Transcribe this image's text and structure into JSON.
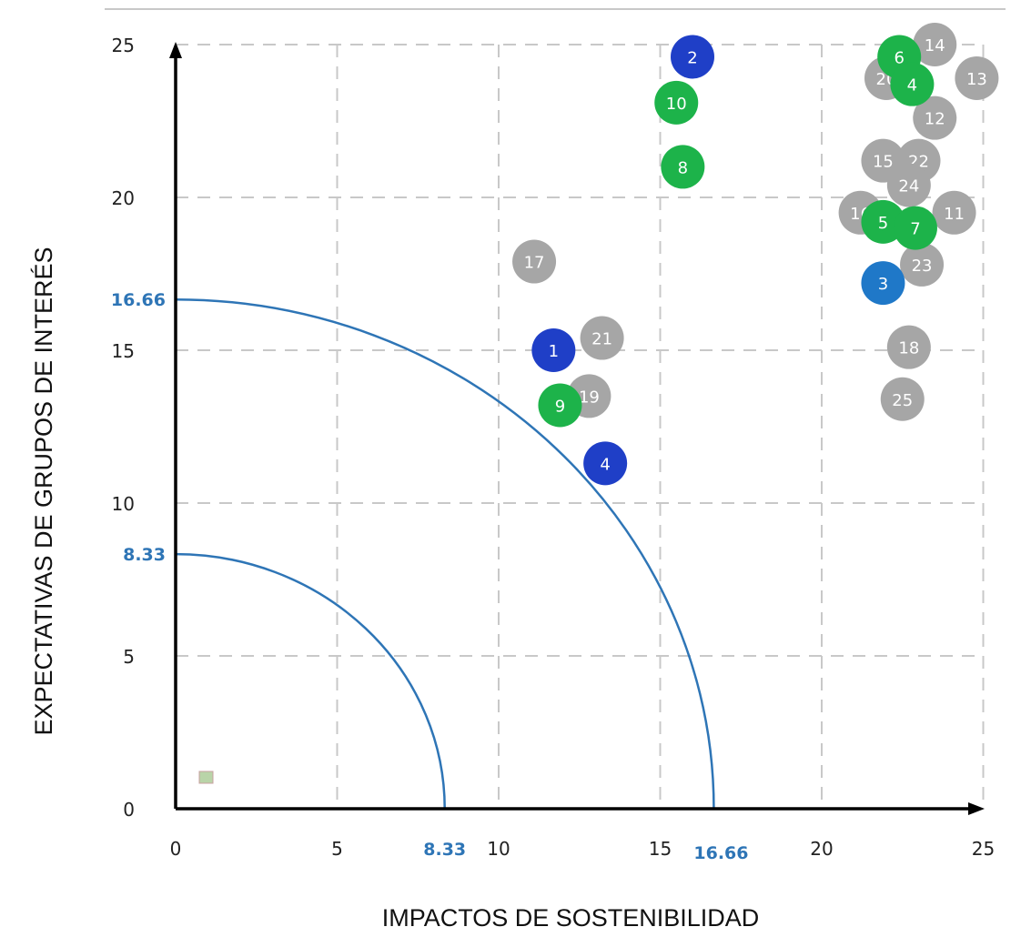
{
  "chart_data": {
    "type": "scatter",
    "xlabel": "IMPACTOS DE SOSTENIBILIDAD",
    "ylabel": "EXPECTATIVAS DE GRUPOS DE INTERÉS",
    "xlim": [
      0,
      25
    ],
    "ylim": [
      0,
      25
    ],
    "x_ticks": [
      "0",
      "5",
      "10",
      "15",
      "20",
      "25"
    ],
    "y_ticks": [
      "0",
      "5",
      "10",
      "15",
      "20",
      "25"
    ],
    "grid": true,
    "threshold_arcs": [
      {
        "radius": 8.33,
        "x_label": "8.33",
        "y_label": "8.33"
      },
      {
        "radius": 16.66,
        "x_label": "16.66",
        "y_label": "16.66"
      }
    ],
    "colors": {
      "navy": "#1f3fc7",
      "blue": "#1f78c8",
      "green": "#1db34a",
      "gray": "#a6a6a6",
      "arc": "#2e75b6",
      "grid": "#c8c8c8",
      "axis": "#000000"
    },
    "points": [
      {
        "label": "14",
        "x": 23.5,
        "y": 25.0,
        "color": "gray"
      },
      {
        "label": "13",
        "x": 24.8,
        "y": 23.9,
        "color": "gray"
      },
      {
        "label": "20",
        "x": 22.0,
        "y": 23.9,
        "color": "gray"
      },
      {
        "label": "12",
        "x": 23.5,
        "y": 22.6,
        "color": "gray"
      },
      {
        "label": "15",
        "x": 21.9,
        "y": 21.2,
        "color": "gray"
      },
      {
        "label": "22",
        "x": 23.0,
        "y": 21.2,
        "color": "gray"
      },
      {
        "label": "24",
        "x": 22.7,
        "y": 20.4,
        "color": "gray"
      },
      {
        "label": "16",
        "x": 21.2,
        "y": 19.5,
        "color": "gray"
      },
      {
        "label": "11",
        "x": 24.1,
        "y": 19.5,
        "color": "gray"
      },
      {
        "label": "23",
        "x": 23.1,
        "y": 17.8,
        "color": "gray"
      },
      {
        "label": "17",
        "x": 11.1,
        "y": 17.9,
        "color": "gray"
      },
      {
        "label": "21",
        "x": 13.2,
        "y": 15.4,
        "color": "gray"
      },
      {
        "label": "19",
        "x": 12.8,
        "y": 13.5,
        "color": "gray"
      },
      {
        "label": "18",
        "x": 22.7,
        "y": 15.1,
        "color": "gray"
      },
      {
        "label": "25",
        "x": 22.5,
        "y": 13.4,
        "color": "gray"
      },
      {
        "label": "6",
        "x": 22.4,
        "y": 24.6,
        "color": "green"
      },
      {
        "label": "4",
        "x": 22.8,
        "y": 23.7,
        "color": "green"
      },
      {
        "label": "10",
        "x": 15.5,
        "y": 23.1,
        "color": "green"
      },
      {
        "label": "8",
        "x": 15.7,
        "y": 21.0,
        "color": "green"
      },
      {
        "label": "5",
        "x": 21.9,
        "y": 19.2,
        "color": "green"
      },
      {
        "label": "7",
        "x": 22.9,
        "y": 19.0,
        "color": "green"
      },
      {
        "label": "9",
        "x": 11.9,
        "y": 13.2,
        "color": "green"
      },
      {
        "label": "2",
        "x": 16.0,
        "y": 24.6,
        "color": "navy"
      },
      {
        "label": "1",
        "x": 11.7,
        "y": 15.0,
        "color": "navy"
      },
      {
        "label": "4",
        "x": 13.3,
        "y": 11.3,
        "color": "navy"
      },
      {
        "label": "3",
        "x": 21.9,
        "y": 17.2,
        "color": "blue"
      }
    ]
  }
}
